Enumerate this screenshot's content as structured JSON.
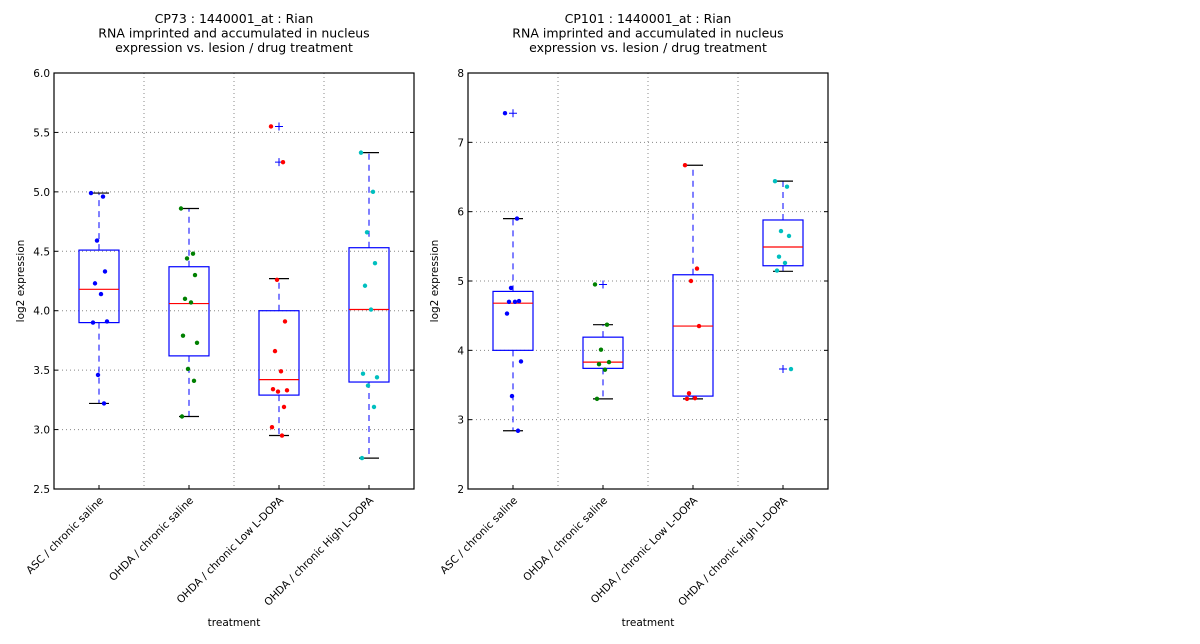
{
  "chart_data": [
    {
      "type": "box",
      "title": [
        "CP73 : 1440001_at : Rian",
        "RNA imprinted and accumulated in nucleus",
        "expression vs. lesion / drug treatment"
      ],
      "xlabel": "treatment",
      "ylabel": "log2 expression",
      "ylim": [
        2.5,
        6.0
      ],
      "yticks": [
        "2.5",
        "3.0",
        "3.5",
        "4.0",
        "4.5",
        "5.0",
        "5.5",
        "6.0"
      ],
      "grid": true,
      "categories": [
        "ASC / chronic saline",
        "OHDA / chronic saline",
        "OHDA / chronic Low L-DOPA",
        "OHDA / chronic High L-DOPA"
      ],
      "colors": [
        "#0000ff",
        "#008000",
        "#ff0000",
        "#00bfbf"
      ],
      "boxes": [
        {
          "whislo": 3.22,
          "q1": 3.9,
          "med": 4.18,
          "q3": 4.51,
          "whishi": 4.99,
          "fliers": []
        },
        {
          "whislo": 3.11,
          "q1": 3.62,
          "med": 4.06,
          "q3": 4.37,
          "whishi": 4.86,
          "fliers": []
        },
        {
          "whislo": 2.95,
          "q1": 3.29,
          "med": 3.42,
          "q3": 4.0,
          "whishi": 4.27,
          "fliers": [
            5.55,
            5.25
          ]
        },
        {
          "whislo": 2.76,
          "q1": 3.4,
          "med": 4.01,
          "q3": 4.53,
          "whishi": 5.33,
          "fliers": []
        }
      ],
      "points": [
        [
          4.99,
          4.96,
          4.59,
          4.33,
          4.23,
          4.14,
          3.9,
          3.91,
          3.46,
          3.22
        ],
        [
          4.86,
          4.48,
          4.44,
          4.3,
          4.1,
          4.07,
          3.79,
          3.73,
          3.51,
          3.41,
          3.11
        ],
        [
          5.55,
          5.25,
          4.26,
          3.91,
          3.66,
          3.49,
          3.34,
          3.33,
          3.32,
          3.19,
          3.02,
          2.95
        ],
        [
          5.33,
          5.0,
          4.66,
          4.4,
          4.21,
          4.01,
          3.47,
          3.44,
          3.37,
          3.19,
          2.76
        ]
      ]
    },
    {
      "type": "box",
      "title": [
        "CP101 : 1440001_at : Rian",
        "RNA imprinted and accumulated in nucleus",
        "expression vs. lesion / drug treatment"
      ],
      "xlabel": "treatment",
      "ylabel": "log2 expression",
      "ylim": [
        2,
        8
      ],
      "yticks": [
        "2",
        "3",
        "4",
        "5",
        "6",
        "7",
        "8"
      ],
      "grid": true,
      "categories": [
        "ASC / chronic saline",
        "OHDA / chronic saline",
        "OHDA / chronic Low L-DOPA",
        "OHDA / chronic High L-DOPA"
      ],
      "colors": [
        "#0000ff",
        "#008000",
        "#ff0000",
        "#00bfbf"
      ],
      "boxes": [
        {
          "whislo": 2.84,
          "q1": 4.0,
          "med": 4.68,
          "q3": 4.85,
          "whishi": 5.9,
          "fliers": [
            7.42
          ]
        },
        {
          "whislo": 3.3,
          "q1": 3.74,
          "med": 3.83,
          "q3": 4.19,
          "whishi": 4.37,
          "fliers": [
            4.95
          ]
        },
        {
          "whislo": 3.3,
          "q1": 3.34,
          "med": 4.35,
          "q3": 5.09,
          "whishi": 6.67,
          "fliers": []
        },
        {
          "whislo": 5.14,
          "q1": 5.22,
          "med": 5.49,
          "q3": 5.88,
          "whishi": 6.44,
          "fliers": [
            3.73
          ]
        }
      ],
      "points": [
        [
          7.42,
          5.9,
          4.9,
          4.71,
          4.7,
          4.7,
          4.53,
          3.84,
          3.34,
          2.84
        ],
        [
          4.95,
          4.37,
          4.01,
          3.83,
          3.8,
          3.72,
          3.3
        ],
        [
          6.67,
          5.18,
          5.0,
          4.35,
          3.38,
          3.31,
          3.3
        ],
        [
          6.44,
          6.36,
          5.72,
          5.65,
          5.35,
          5.26,
          5.15,
          3.73
        ]
      ]
    }
  ]
}
